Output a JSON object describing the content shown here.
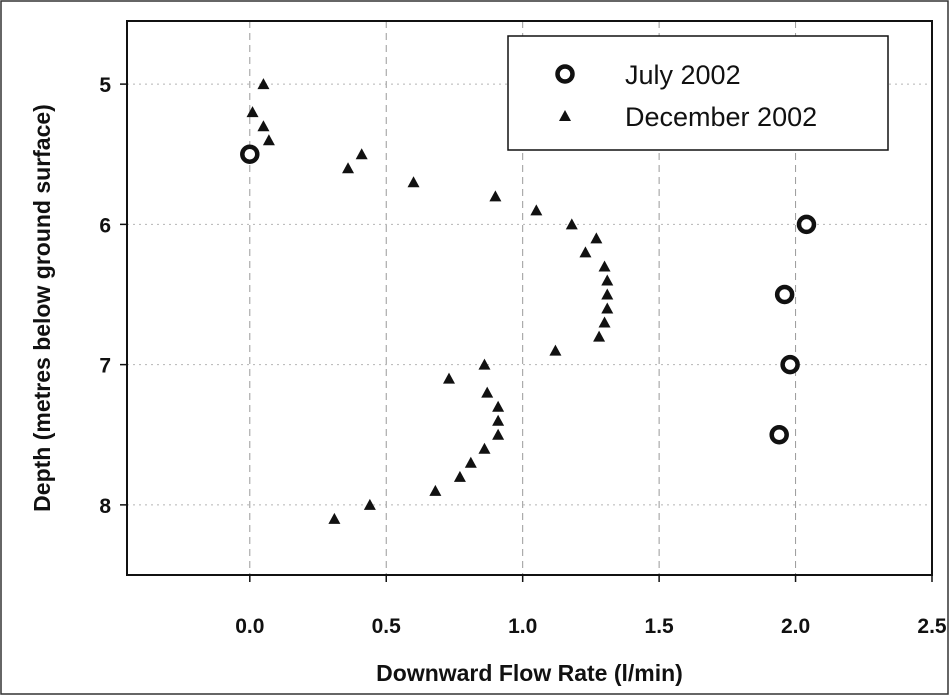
{
  "chart_data": {
    "type": "scatter",
    "xlabel": "Downward Flow Rate (l/min)",
    "ylabel": "Depth (metres below ground surface)",
    "xlim": [
      -0.45,
      2.5
    ],
    "ylim": [
      4.55,
      8.5
    ],
    "y_inverted": true,
    "x_ticks": [
      "0.0",
      "0.5",
      "1.0",
      "1.5",
      "2.0",
      "2.5"
    ],
    "y_ticks": [
      "5",
      "6",
      "7",
      "8"
    ],
    "grid": "vertical dashed and horizontal dotted",
    "legend_position": "top-right",
    "colors": {
      "markers": "#111111",
      "grid": "#9a9a9a",
      "background": "#ffffff"
    },
    "series": [
      {
        "name": "July 2002",
        "marker": "open-circle",
        "points": [
          {
            "x": 0.0,
            "y": 5.5
          },
          {
            "x": 2.04,
            "y": 6.0
          },
          {
            "x": 1.96,
            "y": 6.5
          },
          {
            "x": 1.98,
            "y": 7.0
          },
          {
            "x": 1.94,
            "y": 7.5
          }
        ]
      },
      {
        "name": "December 2002",
        "marker": "filled-triangle",
        "points": [
          {
            "x": 0.05,
            "y": 5.0
          },
          {
            "x": 0.01,
            "y": 5.2
          },
          {
            "x": 0.05,
            "y": 5.3
          },
          {
            "x": 0.07,
            "y": 5.4
          },
          {
            "x": 0.41,
            "y": 5.5
          },
          {
            "x": 0.36,
            "y": 5.6
          },
          {
            "x": 0.6,
            "y": 5.7
          },
          {
            "x": 0.9,
            "y": 5.8
          },
          {
            "x": 1.05,
            "y": 5.9
          },
          {
            "x": 1.18,
            "y": 6.0
          },
          {
            "x": 1.27,
            "y": 6.1
          },
          {
            "x": 1.23,
            "y": 6.2
          },
          {
            "x": 1.3,
            "y": 6.3
          },
          {
            "x": 1.31,
            "y": 6.4
          },
          {
            "x": 1.31,
            "y": 6.5
          },
          {
            "x": 1.31,
            "y": 6.6
          },
          {
            "x": 1.3,
            "y": 6.7
          },
          {
            "x": 1.28,
            "y": 6.8
          },
          {
            "x": 1.12,
            "y": 6.9
          },
          {
            "x": 0.86,
            "y": 7.0
          },
          {
            "x": 0.73,
            "y": 7.1
          },
          {
            "x": 0.87,
            "y": 7.2
          },
          {
            "x": 0.91,
            "y": 7.3
          },
          {
            "x": 0.91,
            "y": 7.4
          },
          {
            "x": 0.91,
            "y": 7.5
          },
          {
            "x": 0.86,
            "y": 7.6
          },
          {
            "x": 0.81,
            "y": 7.7
          },
          {
            "x": 0.77,
            "y": 7.8
          },
          {
            "x": 0.68,
            "y": 7.9
          },
          {
            "x": 0.44,
            "y": 8.0
          },
          {
            "x": 0.31,
            "y": 8.1
          }
        ]
      }
    ]
  }
}
